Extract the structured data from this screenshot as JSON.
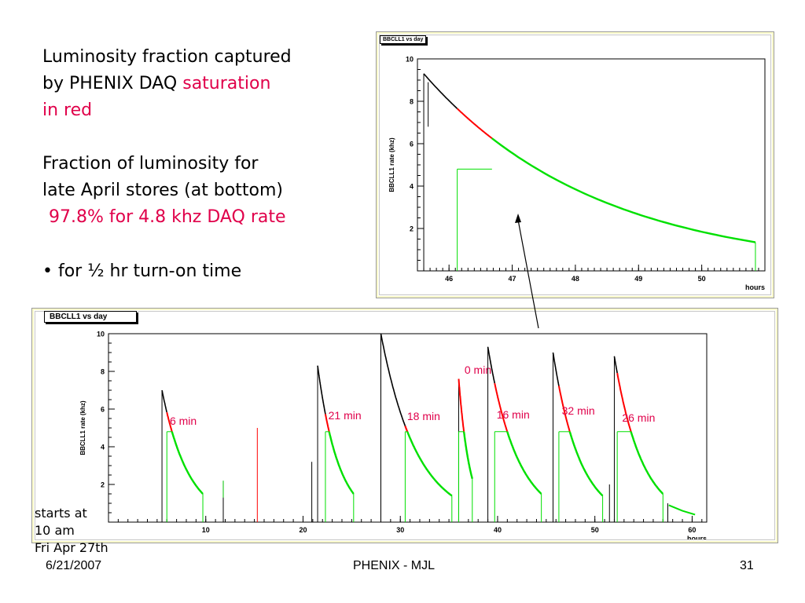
{
  "slide": {
    "para1_line1": "Luminosity fraction captured",
    "para1_line2a": "by PHENIX DAQ ",
    "para1_line2b": "saturation",
    "para1_line3": "in red",
    "para2_line1": "Fraction of luminosity for",
    "para2_line2": "late April stores (at bottom)",
    "para2_line3": "97.8% for 4.8 khz DAQ rate",
    "bullet": "• for ½ hr turn-on time",
    "starts_line1": "starts at",
    "starts_line2": "10 am",
    "starts_line3": "Fri Apr 27th",
    "footer_date": "6/21/2007",
    "footer_center": "PHENIX - MJL",
    "footer_page": "31"
  },
  "colors": {
    "normal": "#000000",
    "saturation": "#ff0000",
    "captured": "#00e000",
    "slide_red": "#e0004a",
    "panel_bg": "#ffffcc",
    "annotation": "#e0004a"
  },
  "chart_data": [
    {
      "type": "line",
      "title": "BBCLL1 vs day",
      "xlabel": "hours",
      "ylabel": "BBCLL1 rate (khz)",
      "xlim": [
        45.5,
        51.0
      ],
      "ylim": [
        0,
        10
      ],
      "x_ticks": [
        "46",
        "47",
        "48",
        "49",
        "50"
      ],
      "y_ticks": [
        "2",
        "4",
        "6",
        "8",
        "10"
      ],
      "daq_limit_khz": 4.8,
      "store": {
        "start": 45.6,
        "peak": 9.3,
        "saturation_start": 46.13,
        "saturation_end": 46.68,
        "end": 50.85,
        "end_rate": 1.35
      }
    },
    {
      "type": "line",
      "title": "BBCLL1 vs day",
      "xlabel": "hours",
      "ylabel": "BBCLL1 rate (khz)",
      "xlim": [
        0,
        61.5
      ],
      "ylim": [
        0,
        10
      ],
      "x_ticks": [
        "10",
        "20",
        "30",
        "40",
        "50",
        "60"
      ],
      "y_ticks": [
        "2",
        "4",
        "6",
        "8",
        "10"
      ],
      "daq_limit_khz": 4.8,
      "stores": [
        {
          "start": 5.5,
          "peak": 7.0,
          "turn_on": 6.0,
          "end": 9.7,
          "end_rate": 1.5,
          "label": "6 min"
        },
        {
          "start": 21.5,
          "peak": 8.3,
          "turn_on": 22.3,
          "end": 25.2,
          "end_rate": 1.5,
          "label": "21 min"
        },
        {
          "start": 28.0,
          "peak": 10.0,
          "turn_on": 30.5,
          "end": 35.3,
          "end_rate": 1.4,
          "label": "18 min"
        },
        {
          "start": 36.0,
          "peak": 7.6,
          "turn_on": 36.0,
          "end": 37.4,
          "end_rate": 2.3,
          "label": "0 min"
        },
        {
          "start": 39.0,
          "peak": 9.3,
          "turn_on": 39.7,
          "end": 44.5,
          "end_rate": 1.5,
          "label": "16 min"
        },
        {
          "start": 45.7,
          "peak": 9.0,
          "turn_on": 46.3,
          "end": 50.8,
          "end_rate": 1.4,
          "label": "32 min"
        },
        {
          "start": 52.0,
          "peak": 8.8,
          "turn_on": 52.3,
          "end": 57.0,
          "end_rate": 1.5,
          "label": "26 min"
        }
      ]
    }
  ]
}
